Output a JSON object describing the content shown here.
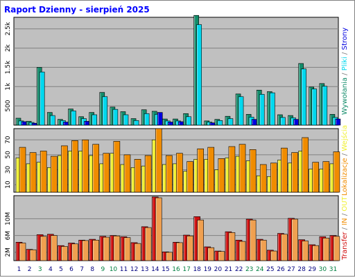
{
  "title": "Raport Dzienny -  sierpień 2025",
  "colors": {
    "background": "#ffffff",
    "plot": "#c0c0c0",
    "title": "#0000ff",
    "grid": "#808080",
    "wywolania": "#128c6a",
    "pliki": "#00d8ee",
    "strony": "#0000e0",
    "lokalizacje": "#f08c00",
    "wejscia": "#f0f030",
    "transfer": "#d01010",
    "in": "#f0a050",
    "out": "#f0a050"
  },
  "chart_data": [
    {
      "type": "bar",
      "name_key": "visits",
      "ylim": [
        0,
        2800
      ],
      "ticks": [
        "500",
        "1k",
        "1.5k",
        "2k",
        "2.5k"
      ],
      "tick_values": [
        500,
        1000,
        1500,
        2000,
        2500
      ],
      "categories": [
        "1",
        "2",
        "3",
        "4",
        "5",
        "6",
        "7",
        "8",
        "9",
        "10",
        "11",
        "12",
        "13",
        "14",
        "15",
        "16",
        "17",
        "18",
        "19",
        "20",
        "21",
        "22",
        "23",
        "24",
        "25",
        "26",
        "27",
        "28",
        "29",
        "30",
        "31"
      ],
      "series": [
        {
          "name": "Wywołania",
          "color_key": "wywolania",
          "values": [
            180,
            100,
            1500,
            330,
            150,
            420,
            220,
            330,
            850,
            470,
            350,
            170,
            400,
            360,
            160,
            160,
            300,
            2850,
            110,
            150,
            230,
            810,
            280,
            910,
            870,
            270,
            250,
            1600,
            990,
            1080,
            280
          ]
        },
        {
          "name": "Pliki",
          "color_key": "pliki",
          "values": [
            110,
            70,
            1380,
            250,
            120,
            370,
            170,
            270,
            740,
            410,
            270,
            120,
            300,
            280,
            110,
            110,
            220,
            2610,
            80,
            120,
            170,
            740,
            210,
            800,
            840,
            200,
            190,
            1460,
            940,
            1010,
            200
          ]
        },
        {
          "name": "Strony",
          "color_key": "strony",
          "values": [
            90,
            50,
            0,
            0,
            80,
            0,
            100,
            0,
            0,
            0,
            0,
            0,
            0,
            330,
            80,
            90,
            0,
            0,
            60,
            0,
            0,
            0,
            150,
            0,
            0,
            0,
            150,
            0,
            0,
            0,
            160
          ]
        }
      ]
    },
    {
      "type": "bar",
      "name_key": "visitors",
      "ylim": [
        0,
        85
      ],
      "ticks": [
        "10",
        "30",
        "50",
        "70"
      ],
      "tick_values": [
        10,
        30,
        50,
        70
      ],
      "categories": [
        "1",
        "2",
        "3",
        "4",
        "5",
        "6",
        "7",
        "8",
        "9",
        "10",
        "11",
        "12",
        "13",
        "14",
        "15",
        "16",
        "17",
        "18",
        "19",
        "20",
        "21",
        "22",
        "23",
        "24",
        "25",
        "26",
        "27",
        "28",
        "29",
        "30",
        "31"
      ],
      "series": [
        {
          "name": "Wejścia",
          "color_key": "wejscia",
          "values": [
            46,
            38,
            40,
            33,
            49,
            55,
            55,
            49,
            38,
            52,
            37,
            33,
            35,
            70,
            37,
            38,
            28,
            44,
            44,
            30,
            46,
            48,
            42,
            22,
            21,
            43,
            39,
            55,
            31,
            31,
            38
          ]
        },
        {
          "name": "Lokalizacje",
          "color_key": "lokalizacje",
          "values": [
            60,
            53,
            55,
            48,
            62,
            69,
            70,
            64,
            52,
            68,
            50,
            44,
            49,
            85,
            49,
            52,
            41,
            58,
            60,
            45,
            61,
            64,
            57,
            37,
            39,
            59,
            53,
            73,
            40,
            41,
            54
          ]
        }
      ]
    },
    {
      "type": "bar",
      "name_key": "transfer",
      "ylim": [
        0,
        15.5
      ],
      "ticks": [
        "2M",
        "6M",
        "10M"
      ],
      "tick_values": [
        2,
        6,
        10
      ],
      "categories": [
        "1",
        "2",
        "3",
        "4",
        "5",
        "6",
        "7",
        "8",
        "9",
        "10",
        "11",
        "12",
        "13",
        "14",
        "15",
        "16",
        "17",
        "18",
        "19",
        "20",
        "21",
        "22",
        "23",
        "24",
        "25",
        "26",
        "27",
        "28",
        "29",
        "30",
        "31"
      ],
      "series": [
        {
          "name": "Transfer",
          "color_key": "transfer",
          "values": [
            4.4,
            2.7,
            6.2,
            6.3,
            3.6,
            4.2,
            4.9,
            5.1,
            5.8,
            6.0,
            5.7,
            4.3,
            8.1,
            15.2,
            2.1,
            4.4,
            6.1,
            10.5,
            3.3,
            2.3,
            6.9,
            4.9,
            9.9,
            5.1,
            2.5,
            6.5,
            10.1,
            5.0,
            3.8,
            5.7,
            6.0
          ]
        },
        {
          "name": "IN",
          "color_key": "in",
          "values": [
            4.2,
            2.6,
            5.8,
            6.0,
            3.4,
            4.0,
            4.8,
            4.9,
            5.6,
            5.9,
            5.5,
            4.1,
            7.9,
            15.0,
            2.0,
            4.3,
            5.9,
            9.7,
            3.1,
            2.2,
            6.7,
            4.6,
            9.7,
            4.9,
            2.3,
            6.3,
            9.9,
            4.7,
            3.6,
            5.4,
            5.8
          ]
        }
      ]
    }
  ],
  "legend": {
    "top": [
      {
        "text": "Wywołania",
        "color_key": "wywolania"
      },
      {
        "text": " / ",
        "color_key": "grid"
      },
      {
        "text": "Pliki",
        "color_key": "pliki"
      },
      {
        "text": " / ",
        "color_key": "grid"
      },
      {
        "text": "Strony",
        "color_key": "strony"
      }
    ],
    "middle": [
      {
        "text": "Lokalizacje",
        "color_key": "lokalizacje"
      },
      {
        "text": " / ",
        "color_key": "grid"
      },
      {
        "text": "Wejścia",
        "color_key": "wejscia"
      }
    ],
    "bottom": [
      {
        "text": "Transfer",
        "color_key": "transfer"
      },
      {
        "text": " / ",
        "color_key": "grid"
      },
      {
        "text": "IN",
        "color_key": "lokalizacje"
      },
      {
        "text": " / ",
        "color_key": "grid"
      },
      {
        "text": "OUT",
        "color_key": "wejscia"
      }
    ]
  },
  "weekend_days": [
    "3",
    "9",
    "10",
    "16",
    "17",
    "23",
    "24",
    "30",
    "31"
  ],
  "weekend_color": "#008040",
  "weekday_color": "#000080"
}
